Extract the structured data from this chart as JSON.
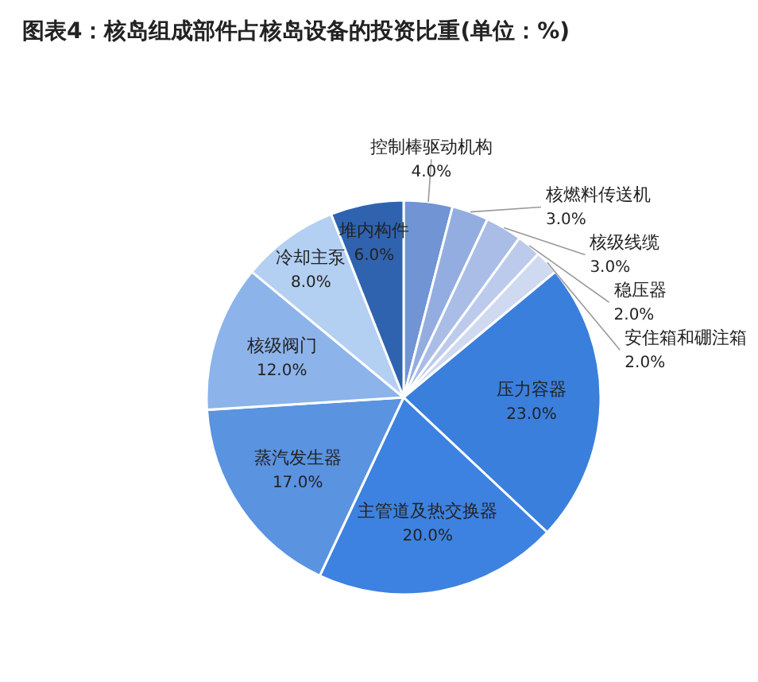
{
  "chart_data": {
    "type": "pie",
    "title": "图表4：核岛组成部件占核岛设备的投资比重(单位：%)",
    "categories": [
      "控制棒驱动机构",
      "核燃料传送机",
      "核级线缆",
      "稳压器",
      "安住箱和硼注箱",
      "压力容器",
      "主管道及热交换器",
      "蒸汽发生器",
      "核级阀门",
      "冷却主泵",
      "堆内构件"
    ],
    "values": [
      4,
      3,
      3,
      2,
      2,
      23,
      20,
      17,
      12,
      8,
      6
    ],
    "value_labels": [
      "4.0%",
      "3.0%",
      "3.0%",
      "2.0%",
      "2.0%",
      "23.0%",
      "20.0%",
      "17.0%",
      "12.0%",
      "8.0%",
      "6.0%"
    ],
    "colors": [
      "#7094d4",
      "#94ade0",
      "#a9bde6",
      "#bccbec",
      "#cfdaf1",
      "#3b7fdc",
      "#3d82e0",
      "#5a93e0",
      "#8cb3ea",
      "#b3cff2",
      "#2f63b0"
    ],
    "legend": false
  }
}
